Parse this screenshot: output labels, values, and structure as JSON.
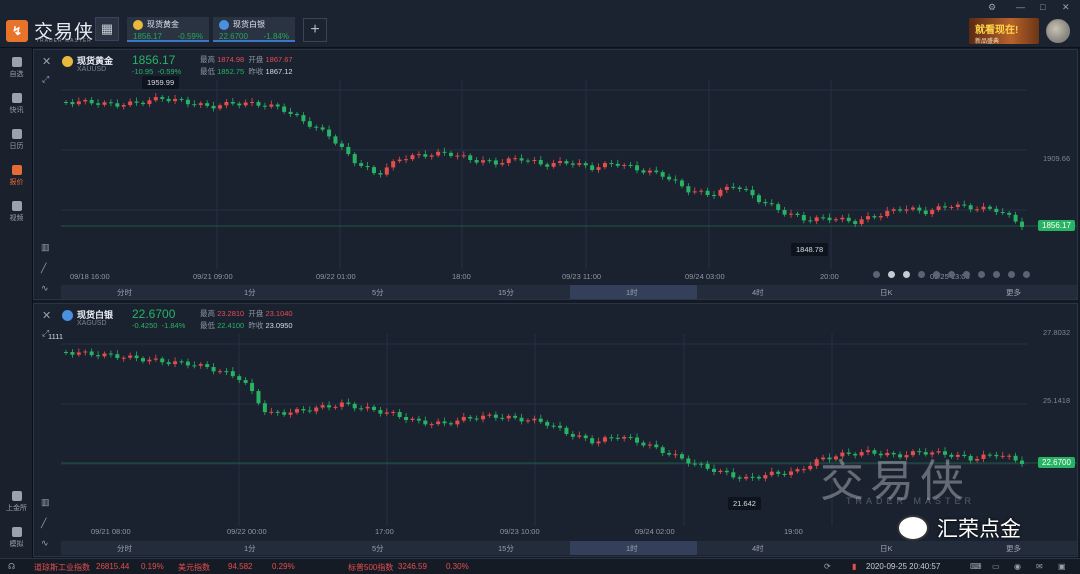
{
  "app": {
    "logo_glyph": "↯",
    "title": "交易侠",
    "subtitle": "TRADER MASTER"
  },
  "tabs": [
    {
      "name": "现货黄金",
      "price": "1856.17",
      "change": "-0.59%"
    },
    {
      "name": "现货白银",
      "price": "22.6700",
      "change": "-1.84%"
    }
  ],
  "window": {
    "min": "—",
    "max": "□",
    "close": "✕",
    "settings": "⚙"
  },
  "banner": {
    "title": "就看现在!",
    "sub": "新品盛典"
  },
  "sidebar": [
    {
      "label": "自选",
      "icon": "bookmark-icon"
    },
    {
      "label": "快讯",
      "icon": "news-icon"
    },
    {
      "label": "日历",
      "icon": "calendar-icon"
    },
    {
      "label": "报价",
      "icon": "quote-icon"
    },
    {
      "label": "视频",
      "icon": "video-icon"
    }
  ],
  "sidebar_bottom": [
    {
      "label": "上金所",
      "icon": "building-icon"
    },
    {
      "label": "模拟",
      "icon": "simulate-icon"
    }
  ],
  "panel1": {
    "name": "现货黄金",
    "code": "XAUUSD",
    "price": "1856.17",
    "change": "-10.95",
    "change_pct": "-0.59%",
    "high_label": "最高",
    "high": "1874.98",
    "open_label": "开盘",
    "open": "1867.67",
    "low_label": "最低",
    "low": "1852.75",
    "prev_label": "昨收",
    "prev": "1867.12",
    "y_label": "1909.66",
    "cur_price": "1856.17",
    "high_mark": "1959.99",
    "low_mark": "1848.78",
    "x_labels": [
      "09/18 16:00",
      "09/21 09:00",
      "09/22 01:00",
      "18:00",
      "09/23 11:00",
      "09/24 03:00",
      "20:00",
      "09/25 13:00"
    ],
    "timeframes": [
      "分时",
      "1分",
      "5分",
      "15分",
      "1时",
      "4时",
      "日K",
      "更多"
    ]
  },
  "panel2": {
    "name": "现货白银",
    "code": "XAGUSD",
    "price": "22.6700",
    "change": "-0.4250",
    "change_pct": "-1.84%",
    "high_label": "最高",
    "high": "23.2810",
    "open_label": "开盘",
    "open": "23.1040",
    "low_label": "最低",
    "low": "22.4100",
    "prev_label": "昨收",
    "prev": "23.0950",
    "y_labels": [
      "27.8032",
      "25.1418"
    ],
    "cur_price": "22.6700",
    "high_mark": "1111",
    "low_mark": "21.642",
    "x_labels": [
      "09/21 08:00",
      "09/22 00:00",
      "17:00",
      "09/23 10:00",
      "09/24 02:00",
      "19:00"
    ],
    "timeframes": [
      "分时",
      "1分",
      "5分",
      "15分",
      "1时",
      "4时",
      "日K",
      "更多"
    ]
  },
  "watermark": {
    "main": "交易侠",
    "sub": "TRADER MASTER",
    "wechat": "汇荣点金"
  },
  "status": [
    {
      "name": "道琼斯工业指数",
      "value": "26815.44",
      "pct": "0.19%"
    },
    {
      "name": "美元指数",
      "value": "94.582",
      "pct": "0.29%"
    },
    {
      "name": "标普500指数",
      "value": "3246.59",
      "pct": "0.30%"
    }
  ],
  "datetime": "2020-09-25 20:40:57",
  "colors": {
    "up": "#e54d4d",
    "down": "#27b363",
    "accent": "#e46a37"
  }
}
